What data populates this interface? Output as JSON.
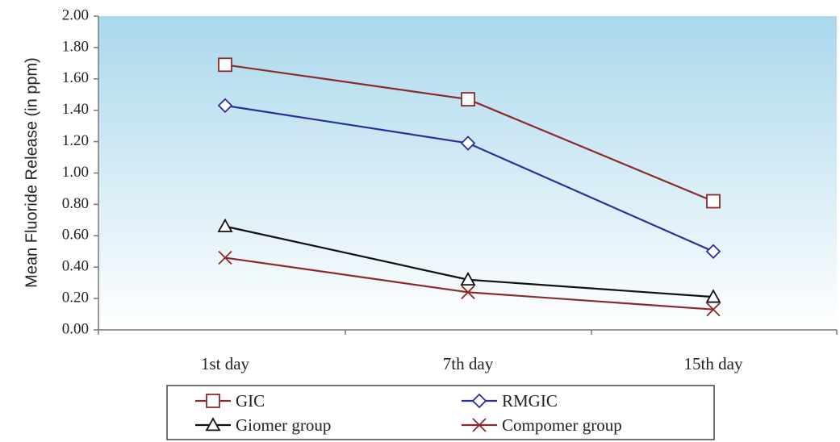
{
  "chart_data": {
    "type": "line",
    "categories": [
      "1st day",
      "7th day",
      "15th day"
    ],
    "ylabel": "Mean Fluoride Release (in ppm)",
    "xlabel": "",
    "ylim": [
      0,
      2.0
    ],
    "yticks": [
      "0.00",
      "0.20",
      "0.40",
      "0.60",
      "0.80",
      "1.00",
      "1.20",
      "1.40",
      "1.60",
      "1.80",
      "2.00"
    ],
    "grid": false,
    "legend_position": "bottom",
    "series": [
      {
        "name": "GIC",
        "values": [
          1.69,
          1.47,
          0.82
        ],
        "color": "#8b2a2a",
        "marker": "square"
      },
      {
        "name": "RMGIC",
        "values": [
          1.43,
          1.19,
          0.5
        ],
        "color": "#2e2e9a",
        "marker": "diamond"
      },
      {
        "name": "Giomer group",
        "values": [
          0.66,
          0.32,
          0.21
        ],
        "color": "#111111",
        "marker": "triangle"
      },
      {
        "name": "Compomer group",
        "values": [
          0.46,
          0.24,
          0.13
        ],
        "color": "#8b2a2a",
        "marker": "x"
      }
    ],
    "plot_gradient": [
      "#aad8ec",
      "#ffffff"
    ]
  }
}
